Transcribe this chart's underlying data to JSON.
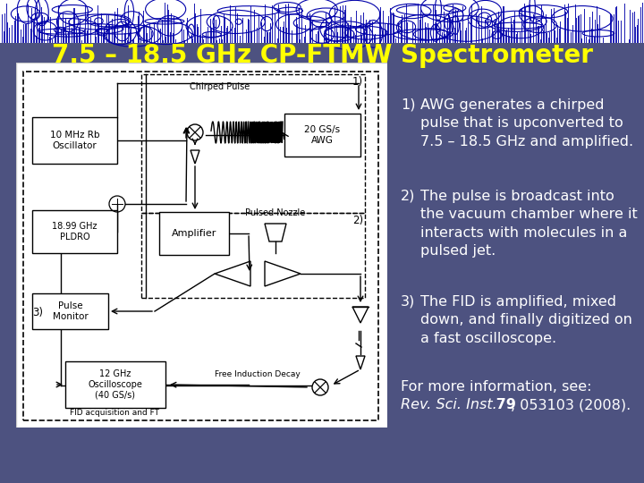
{
  "title": "7.5 – 18.5 GHz CP-FTMW Spectrometer",
  "title_color": "#FFFF00",
  "background_color": "#4d5280",
  "text_color": "#ffffff",
  "item1_num": "1)",
  "item1_text": "AWG generates a chirped\npulse that is upconverted to\n7.5 – 18.5 GHz and amplified.",
  "item2_num": "2)",
  "item2_text": "The pulse is broadcast into\nthe vacuum chamber where it\ninteracts with molecules in a\npulsed jet.",
  "item3_num": "3)",
  "item3_text": "The FID is amplified, mixed\ndown, and finally digitized on\na fast oscilloscope.",
  "ref_line1": "For more information, see:",
  "ref_italic": "Rev. Sci. Inst.",
  "ref_bold": " 79",
  "ref_tail": ", 053103 (2008).",
  "banner_fg": "#0000aa"
}
